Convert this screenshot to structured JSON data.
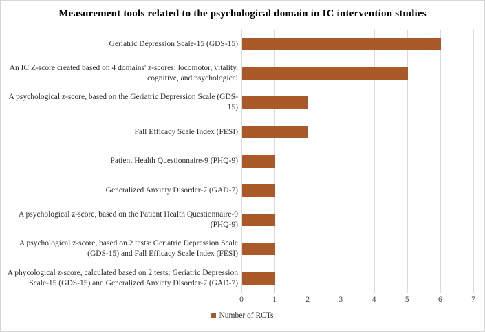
{
  "title": "Measurement tools related to the psychological domain in IC intervention studies",
  "legend": {
    "label": "Number of RCTs"
  },
  "colors": {
    "bar": "#a95a28",
    "gridline": "#d9d9d9",
    "tick_text": "#404040",
    "label_text": "#2e2e2e",
    "border": "#d6d6d6",
    "title_text": "#000000"
  },
  "chart_data": {
    "type": "bar",
    "orientation": "horizontal",
    "title": "Measurement tools related to the psychological domain in IC intervention studies",
    "series_name": "Number of RCTs",
    "categories": [
      "Geriatric Depression Scale-15 (GDS-15)",
      "An IC Z-score created based on 4 domains' z-scores: locomotor, vitality, cognitive, and psychological",
      "A psychological z-score, based on the Geriatric Depression Scale (GDS-15)",
      "Fall Efficacy Scale Index (FESI)",
      "Patient Health Questionnaire-9 (PHQ-9)",
      "Generalized Anxiety Disorder-7 (GAD-7)",
      "A psychological z-score, based on the Patient Health Questionnaire-9 (PHQ-9)",
      "A psychological z-score, based on 2 tests: Geriatric Depression Scale (GDS-15) and Fall Efficacy Scale Index (FESI)",
      "A phycological z-score, calculated based on 2 tests: Geriatric Depression Scale-15 (GDS-15) and Generalized Anxiety Disorder-7 (GAD-7)"
    ],
    "values": [
      6,
      5,
      2,
      2,
      1,
      1,
      1,
      1,
      1
    ],
    "xlabel": "",
    "ylabel": "",
    "xlim": [
      0,
      7
    ],
    "x_ticks": [
      0,
      1,
      2,
      3,
      4,
      5,
      6,
      7
    ],
    "grid": true,
    "legend_position": "bottom"
  }
}
